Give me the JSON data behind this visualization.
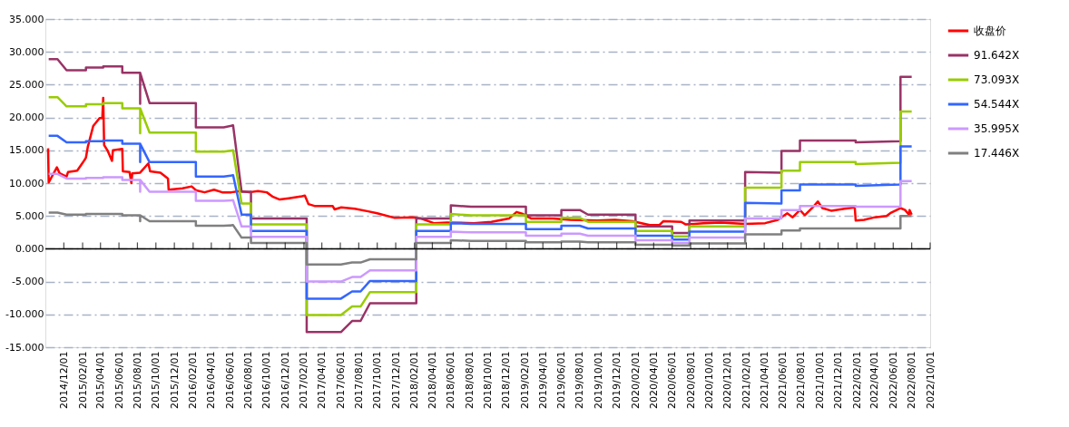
{
  "chart_data": {
    "type": "line",
    "x": [
      "2014-10-12",
      "2014-11-10",
      "2014-12-10",
      "2015-02-12",
      "2015-02-12",
      "2015-04-10",
      "2015-04-10",
      "2015-06-12",
      "2015-06-12",
      "2015-08-10",
      "2015-08-10",
      "2015-08-10",
      "2015-09-10",
      "2016-02-10",
      "2016-02-10",
      "2016-05-12",
      "2016-06-12",
      "2016-07-10",
      "2016-08-10",
      "2016-08-10",
      "2017-02-10",
      "2017-02-10",
      "2017-06-03",
      "2017-07-10",
      "2017-08-07",
      "2017-09-07",
      "2018-02-07",
      "2018-02-07",
      "2018-06-01",
      "2018-06-01",
      "2018-08-07",
      "2019-02-04",
      "2019-02-04",
      "2019-06-01",
      "2019-06-01",
      "2019-08-01",
      "2019-08-28",
      "2020-02-01",
      "2020-02-01",
      "2020-06-01",
      "2020-06-01",
      "2020-07-28",
      "2020-07-28",
      "2021-01-28",
      "2021-01-28",
      "2021-05-28",
      "2021-05-28",
      "2021-07-28",
      "2021-07-28",
      "2022-01-28",
      "2022-01-28",
      "2022-06-25",
      "2022-06-25",
      "2022-08-01"
    ],
    "series": [
      {
        "name": "收盘价",
        "color": "#ff0000",
        "x": [
          "2014-10-10",
          "2014-10-12",
          "2014-11-08",
          "2014-11-17",
          "2014-12-10",
          "2014-12-15",
          "2015-01-14",
          "2015-01-26",
          "2015-02-07",
          "2015-02-12",
          "2015-02-18",
          "2015-03-08",
          "2015-03-29",
          "2015-04-07",
          "2015-04-10",
          "2015-04-13",
          "2015-04-24",
          "2015-05-09",
          "2015-05-12",
          "2015-06-12",
          "2015-06-14",
          "2015-07-06",
          "2015-07-12",
          "2015-07-15",
          "2015-08-10",
          "2015-09-06",
          "2015-09-12",
          "2015-10-16",
          "2015-11-10",
          "2015-11-12",
          "2015-12-28",
          "2016-01-27",
          "2016-02-11",
          "2016-03-10",
          "2016-04-10",
          "2016-05-07",
          "2016-06-06",
          "2016-07-04",
          "2016-08-04",
          "2016-09-02",
          "2016-10-01",
          "2016-10-22",
          "2016-11-13",
          "2016-12-13",
          "2017-01-25",
          "2017-02-04",
          "2017-02-16",
          "2017-03-10",
          "2017-05-07",
          "2017-05-13",
          "2017-06-04",
          "2017-07-19",
          "2017-09-01",
          "2017-10-01",
          "2017-11-28",
          "2018-01-25",
          "2018-02-23",
          "2018-04-06",
          "2018-05-19",
          "2018-08-16",
          "2018-10-13",
          "2018-12-10",
          "2019-01-04",
          "2019-01-25",
          "2019-02-22",
          "2019-05-04",
          "2019-07-01",
          "2019-09-28",
          "2019-11-25",
          "2020-01-22",
          "2020-03-19",
          "2020-04-19",
          "2020-05-03",
          "2020-07-01",
          "2020-07-16",
          "2020-09-12",
          "2020-11-09",
          "2021-01-28",
          "2021-04-04",
          "2021-05-16",
          "2021-06-16",
          "2021-07-04",
          "2021-07-28",
          "2021-08-13",
          "2021-09-10",
          "2021-09-25",
          "2021-10-10",
          "2021-11-08",
          "2021-12-22",
          "2022-01-25",
          "2022-01-28",
          "2022-02-25",
          "2022-04-01",
          "2022-05-10",
          "2022-05-25",
          "2022-06-25",
          "2022-07-10",
          "2022-07-23",
          "2022-07-25",
          "2022-08-01"
        ],
        "values": [
          15.3,
          10.1,
          12.4,
          11.5,
          11.0,
          11.7,
          11.9,
          12.7,
          13.5,
          13.9,
          15.5,
          18.7,
          19.9,
          19.9,
          23.0,
          15.8,
          15.0,
          13.4,
          15.0,
          15.2,
          11.8,
          11.7,
          10.0,
          11.5,
          11.6,
          13.0,
          11.8,
          11.6,
          10.7,
          9.0,
          9.2,
          9.5,
          8.9,
          8.6,
          9.0,
          8.6,
          8.6,
          8.8,
          8.6,
          8.8,
          8.6,
          7.9,
          7.5,
          7.7,
          8.0,
          8.1,
          6.8,
          6.5,
          6.5,
          6.0,
          6.3,
          6.1,
          5.7,
          5.4,
          4.7,
          4.8,
          4.6,
          3.9,
          4.0,
          3.9,
          4.1,
          4.6,
          5.6,
          5.3,
          4.6,
          4.6,
          4.4,
          4.3,
          4.4,
          4.2,
          3.6,
          3.6,
          4.2,
          4.1,
          3.7,
          3.9,
          4.0,
          3.8,
          3.9,
          4.4,
          5.4,
          4.8,
          5.9,
          5.1,
          6.4,
          7.2,
          6.2,
          5.8,
          6.1,
          6.3,
          4.3,
          4.4,
          4.8,
          5.0,
          5.5,
          6.2,
          5.9,
          5.2,
          5.9,
          5.2
        ]
      },
      {
        "name": "91.642X",
        "color": "#993366",
        "values": [
          28.9,
          28.9,
          27.2,
          27.2,
          27.6,
          27.6,
          27.8,
          27.8,
          26.8,
          26.8,
          22.1,
          26.8,
          22.2,
          22.2,
          18.5,
          18.5,
          18.8,
          8.7,
          8.7,
          4.6,
          4.6,
          -12.7,
          -12.7,
          -11.0,
          -11.0,
          -8.3,
          -8.3,
          4.6,
          4.6,
          6.6,
          6.4,
          6.4,
          5.1,
          5.1,
          5.9,
          5.9,
          5.2,
          5.2,
          3.4,
          3.4,
          2.4,
          2.4,
          4.3,
          4.3,
          11.7,
          11.6,
          14.9,
          14.9,
          16.5,
          16.5,
          16.2,
          16.4,
          26.2,
          26.2
        ]
      },
      {
        "name": "73.093X",
        "color": "#99cc00",
        "values": [
          23.1,
          23.1,
          21.7,
          21.7,
          22.0,
          22.0,
          22.2,
          22.2,
          21.4,
          21.4,
          17.6,
          21.4,
          17.7,
          17.7,
          14.8,
          14.8,
          15.0,
          6.9,
          6.9,
          3.7,
          3.7,
          -10.1,
          -10.1,
          -8.8,
          -8.8,
          -6.6,
          -6.6,
          3.7,
          3.7,
          5.3,
          5.1,
          5.1,
          4.1,
          4.1,
          4.7,
          4.7,
          4.1,
          4.1,
          2.7,
          2.7,
          1.9,
          1.9,
          3.4,
          3.4,
          9.3,
          9.3,
          11.9,
          11.9,
          13.2,
          13.2,
          12.9,
          13.1,
          20.9,
          20.9
        ]
      },
      {
        "name": "54.544X",
        "color": "#3366ff",
        "values": [
          17.2,
          17.2,
          16.2,
          16.2,
          16.4,
          16.4,
          16.5,
          16.5,
          16.0,
          16.0,
          13.2,
          16.0,
          13.2,
          13.2,
          11.0,
          11.0,
          11.2,
          5.2,
          5.2,
          2.7,
          2.7,
          -7.6,
          -7.6,
          -6.5,
          -6.5,
          -4.9,
          -4.9,
          2.7,
          2.7,
          3.9,
          3.8,
          3.8,
          3.0,
          3.0,
          3.5,
          3.5,
          3.1,
          3.1,
          2.0,
          2.0,
          1.4,
          1.4,
          2.6,
          2.6,
          7.0,
          6.9,
          8.9,
          8.9,
          9.8,
          9.8,
          9.6,
          9.8,
          15.6,
          15.6
        ]
      },
      {
        "name": "35.995X",
        "color": "#cc99ff",
        "values": [
          11.4,
          11.4,
          10.7,
          10.7,
          10.8,
          10.8,
          10.9,
          10.9,
          10.5,
          10.5,
          8.7,
          10.5,
          8.7,
          8.7,
          7.3,
          7.3,
          7.4,
          3.4,
          3.4,
          1.8,
          1.8,
          -5.0,
          -5.0,
          -4.3,
          -4.3,
          -3.3,
          -3.3,
          1.8,
          1.8,
          2.6,
          2.5,
          2.5,
          2.0,
          2.0,
          2.3,
          2.3,
          2.0,
          2.0,
          1.3,
          1.3,
          0.9,
          0.9,
          1.7,
          1.7,
          4.6,
          4.6,
          5.9,
          5.9,
          6.5,
          6.5,
          6.4,
          6.4,
          10.3,
          10.3
        ]
      },
      {
        "name": "17.446X",
        "color": "#808080",
        "values": [
          5.5,
          5.5,
          5.2,
          5.2,
          5.3,
          5.3,
          5.3,
          5.3,
          5.1,
          5.1,
          4.2,
          5.1,
          4.2,
          4.2,
          3.5,
          3.5,
          3.6,
          1.7,
          1.7,
          0.9,
          0.9,
          -2.4,
          -2.4,
          -2.1,
          -2.1,
          -1.6,
          -1.6,
          0.9,
          0.9,
          1.3,
          1.2,
          1.2,
          1.0,
          1.0,
          1.1,
          1.1,
          1.0,
          1.0,
          0.6,
          0.6,
          0.5,
          0.5,
          0.8,
          0.8,
          2.2,
          2.2,
          2.8,
          2.8,
          3.1,
          3.1,
          3.1,
          3.1,
          5.0,
          5.0
        ]
      }
    ],
    "xlim": [
      "2014-10-01",
      "2022-10-01"
    ],
    "xticks": [
      {
        "value": "2014-12-01",
        "label": "2014/12/01"
      },
      {
        "value": "2015-02-01",
        "label": "2015/02/01"
      },
      {
        "value": "2015-04-01",
        "label": "2015/04/01"
      },
      {
        "value": "2015-06-01",
        "label": "2015/06/01"
      },
      {
        "value": "2015-08-01",
        "label": "2015/08/01"
      },
      {
        "value": "2015-10-01",
        "label": "2015/10/01"
      },
      {
        "value": "2015-12-01",
        "label": "2015/12/01"
      },
      {
        "value": "2016-02-01",
        "label": "2016/02/01"
      },
      {
        "value": "2016-04-01",
        "label": "2016/04/01"
      },
      {
        "value": "2016-06-01",
        "label": "2016/06/01"
      },
      {
        "value": "2016-08-01",
        "label": "2016/08/01"
      },
      {
        "value": "2016-10-01",
        "label": "2016/10/01"
      },
      {
        "value": "2016-12-01",
        "label": "2016/12/01"
      },
      {
        "value": "2017-02-01",
        "label": "2017/02/01"
      },
      {
        "value": "2017-04-01",
        "label": "2017/04/01"
      },
      {
        "value": "2017-06-01",
        "label": "2017/06/01"
      },
      {
        "value": "2017-08-01",
        "label": "2017/08/01"
      },
      {
        "value": "2017-10-01",
        "label": "2017/10/01"
      },
      {
        "value": "2017-12-01",
        "label": "2017/12/01"
      },
      {
        "value": "2018-02-01",
        "label": "2018/02/01"
      },
      {
        "value": "2018-04-01",
        "label": "2018/04/01"
      },
      {
        "value": "2018-06-01",
        "label": "2018/06/01"
      },
      {
        "value": "2018-08-01",
        "label": "2018/08/01"
      },
      {
        "value": "2018-10-01",
        "label": "2018/10/01"
      },
      {
        "value": "2018-12-01",
        "label": "2018/12/01"
      },
      {
        "value": "2019-02-01",
        "label": "2019/02/01"
      },
      {
        "value": "2019-04-01",
        "label": "2019/04/01"
      },
      {
        "value": "2019-06-01",
        "label": "2019/06/01"
      },
      {
        "value": "2019-08-01",
        "label": "2019/08/01"
      },
      {
        "value": "2019-10-01",
        "label": "2019/10/01"
      },
      {
        "value": "2019-12-01",
        "label": "2019/12/01"
      },
      {
        "value": "2020-02-01",
        "label": "2020/02/01"
      },
      {
        "value": "2020-04-01",
        "label": "2020/04/01"
      },
      {
        "value": "2020-06-01",
        "label": "2020/06/01"
      },
      {
        "value": "2020-08-01",
        "label": "2020/08/01"
      },
      {
        "value": "2020-10-01",
        "label": "2020/10/01"
      },
      {
        "value": "2020-12-01",
        "label": "2020/12/01"
      },
      {
        "value": "2021-02-01",
        "label": "2021/02/01"
      },
      {
        "value": "2021-04-01",
        "label": "2021/04/01"
      },
      {
        "value": "2021-06-01",
        "label": "2021/06/01"
      },
      {
        "value": "2021-08-01",
        "label": "2021/08/01"
      },
      {
        "value": "2021-10-01",
        "label": "2021/10/01"
      },
      {
        "value": "2021-12-01",
        "label": "2021/12/01"
      },
      {
        "value": "2022-02-01",
        "label": "2022/02/01"
      },
      {
        "value": "2022-04-01",
        "label": "2022/04/01"
      },
      {
        "value": "2022-06-01",
        "label": "2022/06/01"
      },
      {
        "value": "2022-08-01",
        "label": "2022/08/01"
      },
      {
        "value": "2022-10-01",
        "label": "2022/10/01"
      }
    ],
    "ylim": [
      -15,
      35
    ],
    "yticks": [
      {
        "value": -15,
        "label": "-15.000"
      },
      {
        "value": -10,
        "label": "-10.000"
      },
      {
        "value": -5,
        "label": "-5.000"
      },
      {
        "value": 0,
        "label": "0.000"
      },
      {
        "value": 5,
        "label": "5.000"
      },
      {
        "value": 10,
        "label": "10.000"
      },
      {
        "value": 15,
        "label": "15.000"
      },
      {
        "value": 20,
        "label": "20.000"
      },
      {
        "value": 25,
        "label": "25.000"
      },
      {
        "value": 30,
        "label": "30.000"
      },
      {
        "value": 35,
        "label": "35.000"
      }
    ],
    "grid": "y",
    "legend": "right",
    "line_style": "solid"
  }
}
